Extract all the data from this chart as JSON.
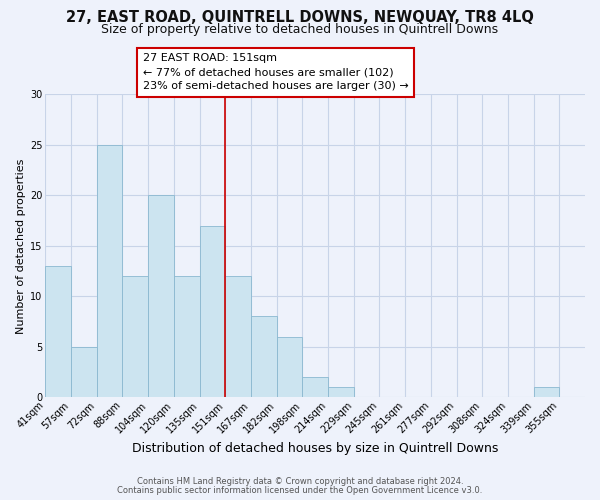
{
  "title1": "27, EAST ROAD, QUINTRELL DOWNS, NEWQUAY, TR8 4LQ",
  "title2": "Size of property relative to detached houses in Quintrell Downs",
  "xlabel": "Distribution of detached houses by size in Quintrell Downs",
  "ylabel": "Number of detached properties",
  "footer1": "Contains HM Land Registry data © Crown copyright and database right 2024.",
  "footer2": "Contains public sector information licensed under the Open Government Licence v3.0.",
  "bar_labels": [
    "41sqm",
    "57sqm",
    "72sqm",
    "88sqm",
    "104sqm",
    "120sqm",
    "135sqm",
    "151sqm",
    "167sqm",
    "182sqm",
    "198sqm",
    "214sqm",
    "229sqm",
    "245sqm",
    "261sqm",
    "277sqm",
    "292sqm",
    "308sqm",
    "324sqm",
    "339sqm",
    "355sqm"
  ],
  "bar_values": [
    13,
    5,
    25,
    12,
    20,
    12,
    17,
    12,
    8,
    6,
    2,
    1,
    0,
    0,
    0,
    0,
    0,
    0,
    0,
    1,
    0
  ],
  "bar_color": "#cce4f0",
  "bar_edge_color": "#8ab8d0",
  "reference_line_color": "#cc0000",
  "annotation_title": "27 EAST ROAD: 151sqm",
  "annotation_line1": "← 77% of detached houses are smaller (102)",
  "annotation_line2": "23% of semi-detached houses are larger (30) →",
  "annotation_box_edge_color": "#cc0000",
  "ylim": [
    0,
    30
  ],
  "yticks": [
    0,
    5,
    10,
    15,
    20,
    25,
    30
  ],
  "background_color": "#eef2fb",
  "grid_color": "#c8d4e8",
  "title1_fontsize": 10.5,
  "title2_fontsize": 9,
  "xlabel_fontsize": 9,
  "ylabel_fontsize": 8,
  "tick_fontsize": 7,
  "annotation_fontsize": 8,
  "footer_fontsize": 6
}
